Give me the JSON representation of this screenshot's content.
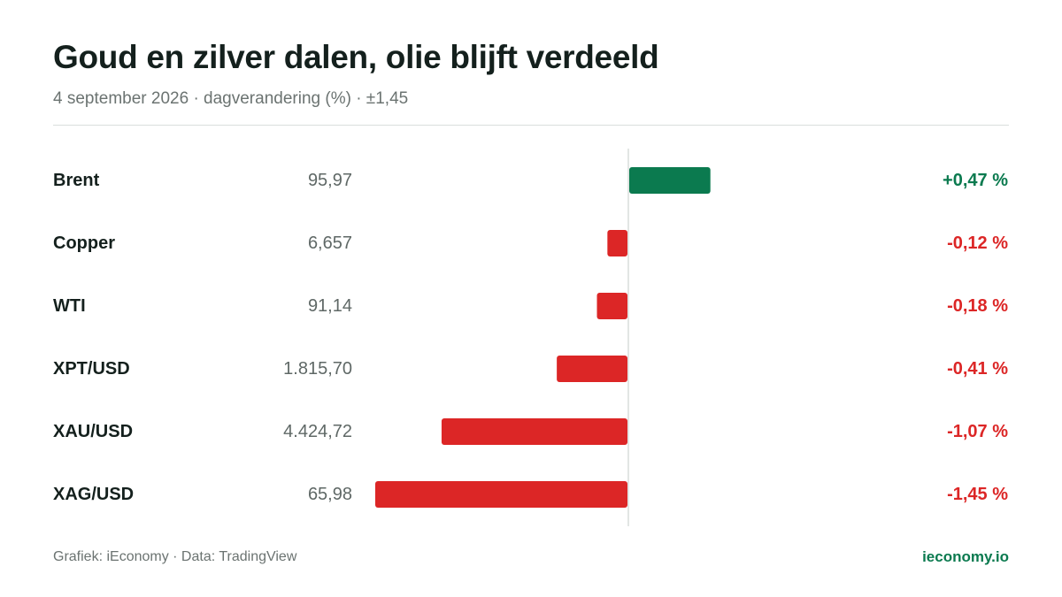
{
  "header": {
    "title": "Goud en zilver dalen, olie blijft verdeeld",
    "subtitle": "4 september 2026 · dagverandering (%) · ±1,45"
  },
  "footer": {
    "source": "Grafiek: iEconomy · Data: TradingView",
    "brand": "ieconomy.io"
  },
  "colors": {
    "positive": "#0b7a4f",
    "negative": "#dc2626",
    "axis": "#d9dedc"
  },
  "chart_data": {
    "type": "bar",
    "orientation": "horizontal",
    "xlim": [
      -1.45,
      1.45
    ],
    "rows": [
      {
        "name": "Brent",
        "price": "95,97",
        "change": 0.47,
        "change_label": "+0,47 %"
      },
      {
        "name": "Copper",
        "price": "6,657",
        "change": -0.12,
        "change_label": "-0,12 %"
      },
      {
        "name": "WTI",
        "price": "91,14",
        "change": -0.18,
        "change_label": "-0,18 %"
      },
      {
        "name": "XPT/USD",
        "price": "1.815,70",
        "change": -0.41,
        "change_label": "-0,41 %"
      },
      {
        "name": "XAU/USD",
        "price": "4.424,72",
        "change": -1.07,
        "change_label": "-1,07 %"
      },
      {
        "name": "XAG/USD",
        "price": "65,98",
        "change": -1.45,
        "change_label": "-1,45 %"
      }
    ]
  }
}
